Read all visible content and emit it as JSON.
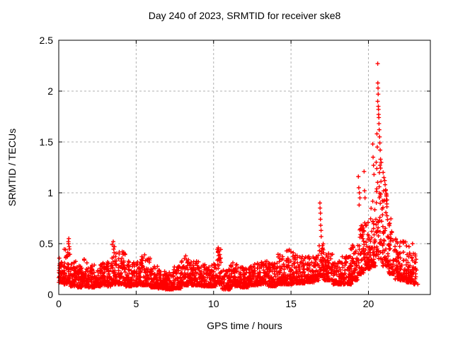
{
  "chart_data": {
    "type": "scatter",
    "title": "Day 240 of 2023, SRMTID for receiver ske8",
    "xlabel": "GPS time / hours",
    "ylabel": "SRMTID / TECUs",
    "xlim": [
      0,
      24
    ],
    "ylim": [
      0,
      2.5
    ],
    "xticks": [
      0,
      5,
      10,
      15,
      20
    ],
    "xtick_labels": [
      "0",
      "5",
      "10",
      "15",
      "20"
    ],
    "yticks": [
      0,
      0.5,
      1,
      1.5,
      2,
      2.5
    ],
    "ytick_labels": [
      "0",
      "0.5",
      "1",
      "1.5",
      "2",
      "2.5"
    ],
    "grid": true,
    "legend": "none",
    "marker": "plus",
    "marker_color": "#ff0000",
    "grid_color": "#b0b0b0",
    "axis_color": "#000000",
    "background": "#ffffff",
    "data_x_start": 0.0,
    "data_x_end": 23.2,
    "max_point": [
      20.6,
      2.27
    ],
    "series": [
      {
        "name": "SRMTID",
        "points_per_hour": 130,
        "band_segments": [
          [
            0.0,
            0.3,
            0.12,
            0.36,
            1
          ],
          [
            0.3,
            0.55,
            0.1,
            0.45,
            1
          ],
          [
            0.55,
            0.75,
            0.12,
            0.52,
            1
          ],
          [
            0.75,
            1.2,
            0.08,
            0.33,
            1
          ],
          [
            1.2,
            1.6,
            0.07,
            0.3,
            1
          ],
          [
            1.6,
            1.9,
            0.08,
            0.35,
            1
          ],
          [
            1.9,
            2.3,
            0.07,
            0.3,
            1
          ],
          [
            2.3,
            2.7,
            0.08,
            0.28,
            1
          ],
          [
            2.7,
            3.1,
            0.09,
            0.31,
            1
          ],
          [
            3.1,
            3.4,
            0.08,
            0.33,
            1
          ],
          [
            3.4,
            3.75,
            0.1,
            0.48,
            1
          ],
          [
            3.75,
            4.3,
            0.1,
            0.42,
            1
          ],
          [
            4.3,
            4.8,
            0.08,
            0.33,
            1
          ],
          [
            4.8,
            5.3,
            0.09,
            0.32,
            1
          ],
          [
            5.3,
            5.9,
            0.09,
            0.38,
            1
          ],
          [
            5.9,
            6.4,
            0.07,
            0.28,
            1
          ],
          [
            6.4,
            6.9,
            0.06,
            0.25,
            1
          ],
          [
            6.9,
            7.4,
            0.05,
            0.22,
            1
          ],
          [
            7.4,
            7.9,
            0.06,
            0.28,
            1
          ],
          [
            7.9,
            8.5,
            0.09,
            0.36,
            1
          ],
          [
            8.5,
            9.2,
            0.09,
            0.33,
            1
          ],
          [
            9.2,
            9.8,
            0.08,
            0.3,
            1
          ],
          [
            9.8,
            10.15,
            0.08,
            0.3,
            1
          ],
          [
            10.15,
            10.55,
            0.1,
            0.46,
            1
          ],
          [
            10.55,
            11.1,
            0.05,
            0.26,
            1
          ],
          [
            11.1,
            11.7,
            0.08,
            0.33,
            1
          ],
          [
            11.7,
            12.3,
            0.07,
            0.28,
            1
          ],
          [
            12.3,
            12.9,
            0.09,
            0.31,
            1
          ],
          [
            12.9,
            13.5,
            0.1,
            0.35,
            1
          ],
          [
            13.5,
            14.1,
            0.08,
            0.31,
            1
          ],
          [
            14.1,
            14.7,
            0.1,
            0.4,
            1
          ],
          [
            14.7,
            15.2,
            0.1,
            0.44,
            1
          ],
          [
            15.2,
            15.9,
            0.11,
            0.4,
            1
          ],
          [
            15.9,
            16.5,
            0.12,
            0.38,
            1
          ],
          [
            16.5,
            16.8,
            0.14,
            0.44,
            1
          ],
          [
            16.8,
            17.1,
            0.18,
            0.5,
            1
          ],
          [
            17.1,
            17.7,
            0.14,
            0.42,
            1
          ],
          [
            17.7,
            18.3,
            0.1,
            0.33,
            1
          ],
          [
            18.3,
            18.9,
            0.1,
            0.38,
            1
          ],
          [
            18.9,
            19.3,
            0.14,
            0.5,
            1
          ],
          [
            19.3,
            19.7,
            0.2,
            0.75,
            1
          ],
          [
            19.7,
            20.1,
            0.25,
            0.72,
            1
          ],
          [
            20.1,
            20.5,
            0.28,
            0.95,
            1
          ],
          [
            20.5,
            20.85,
            0.35,
            1.35,
            1
          ],
          [
            20.85,
            21.3,
            0.28,
            1.05,
            1
          ],
          [
            21.3,
            21.7,
            0.2,
            0.75,
            1
          ],
          [
            21.7,
            22.0,
            0.15,
            0.55,
            1
          ],
          [
            22.0,
            22.45,
            0.14,
            0.55,
            1
          ],
          [
            22.45,
            22.85,
            0.12,
            0.48,
            1
          ],
          [
            22.85,
            23.2,
            0.1,
            0.45,
            0.55
          ]
        ],
        "peak_points": [
          [
            0.62,
            0.52
          ],
          [
            0.63,
            0.5
          ],
          [
            0.65,
            0.55
          ],
          [
            0.67,
            0.47
          ],
          [
            3.45,
            0.49
          ],
          [
            3.52,
            0.52
          ],
          [
            3.56,
            0.47
          ],
          [
            4.1,
            0.42
          ],
          [
            5.55,
            0.39
          ],
          [
            8.2,
            0.38
          ],
          [
            10.3,
            0.46
          ],
          [
            10.35,
            0.44
          ],
          [
            14.9,
            0.44
          ],
          [
            15.0,
            0.42
          ],
          [
            16.87,
            0.9
          ],
          [
            16.88,
            0.85
          ],
          [
            16.9,
            0.8
          ],
          [
            16.9,
            0.74
          ],
          [
            16.92,
            0.68
          ],
          [
            16.94,
            0.63
          ],
          [
            16.95,
            0.57
          ],
          [
            18.85,
            0.45
          ],
          [
            19.35,
            1.16
          ],
          [
            19.38,
            1.05
          ],
          [
            19.42,
            1.0
          ],
          [
            19.45,
            0.95
          ],
          [
            19.4,
            0.88
          ],
          [
            19.72,
            1.21
          ],
          [
            19.75,
            1.02
          ],
          [
            19.78,
            0.95
          ],
          [
            20.28,
            1.48
          ],
          [
            20.3,
            1.35
          ],
          [
            20.33,
            1.27
          ],
          [
            20.36,
            1.18
          ],
          [
            20.55,
            1.58
          ],
          [
            20.57,
            1.45
          ],
          [
            20.6,
            2.27
          ],
          [
            20.6,
            1.9
          ],
          [
            20.61,
            2.08
          ],
          [
            20.62,
            2.03
          ],
          [
            20.63,
            1.97
          ],
          [
            20.64,
            1.85
          ],
          [
            20.65,
            1.82
          ],
          [
            20.66,
            1.77
          ],
          [
            20.67,
            1.74
          ],
          [
            20.68,
            1.68
          ],
          [
            20.7,
            1.62
          ],
          [
            20.72,
            1.55
          ],
          [
            20.74,
            1.49
          ],
          [
            20.76,
            1.42
          ],
          [
            20.78,
            1.33
          ],
          [
            20.95,
            1.2
          ],
          [
            21.0,
            1.15
          ],
          [
            21.05,
            1.12
          ],
          [
            21.08,
            1.08
          ],
          [
            21.12,
            1.03
          ],
          [
            21.16,
            0.98
          ],
          [
            21.2,
            0.93
          ],
          [
            22.85,
            0.5
          ]
        ]
      }
    ]
  }
}
